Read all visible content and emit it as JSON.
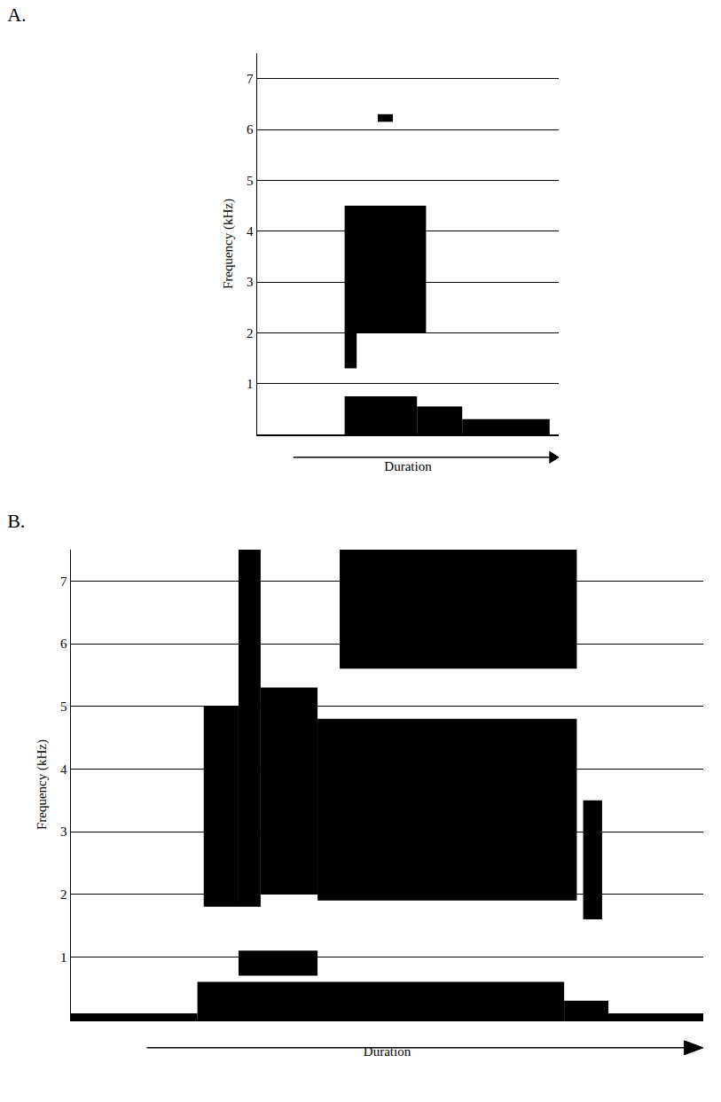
{
  "chart_data": [
    {
      "type": "spectrogram",
      "title": "A.",
      "xlabel": "Duration",
      "ylabel": "Frequency (kHz)",
      "xlim": [
        0,
        100
      ],
      "xticks": [],
      "ylim": [
        0,
        7.5
      ],
      "yticks": [
        1,
        2,
        3,
        4,
        5,
        6,
        7
      ],
      "grid": true,
      "tick_labels": "y",
      "color": "#000000",
      "bands": [
        {
          "x": [
            29,
            56
          ],
          "y": [
            2.0,
            4.5
          ]
        },
        {
          "x": [
            29,
            33
          ],
          "y": [
            1.3,
            2.0
          ]
        },
        {
          "x": [
            40,
            45
          ],
          "y": [
            6.15,
            6.3
          ]
        },
        {
          "x": [
            29,
            53
          ],
          "y": [
            0,
            0.75
          ]
        },
        {
          "x": [
            53,
            68
          ],
          "y": [
            0,
            0.55
          ]
        },
        {
          "x": [
            68,
            97
          ],
          "y": [
            0,
            0.3
          ]
        }
      ]
    },
    {
      "type": "spectrogram",
      "title": "B.",
      "xlabel": "Duration",
      "ylabel": "Frequency (kHz)",
      "xlim": [
        0,
        100
      ],
      "xticks": [],
      "ylim": [
        0,
        7.5
      ],
      "yticks": [
        1,
        2,
        3,
        4,
        5,
        6,
        7
      ],
      "grid": true,
      "tick_labels": "y",
      "color": "#000000",
      "bands": [
        {
          "x": [
            21,
            26.5
          ],
          "y": [
            1.8,
            5.0
          ]
        },
        {
          "x": [
            26.5,
            30
          ],
          "y": [
            1.8,
            7.5
          ]
        },
        {
          "x": [
            30,
            39
          ],
          "y": [
            2.0,
            5.3
          ]
        },
        {
          "x": [
            39,
            80
          ],
          "y": [
            1.9,
            4.8
          ]
        },
        {
          "x": [
            42.5,
            80
          ],
          "y": [
            5.6,
            7.5
          ]
        },
        {
          "x": [
            81,
            84
          ],
          "y": [
            1.6,
            3.5
          ]
        },
        {
          "x": [
            20,
            78
          ],
          "y": [
            0,
            0.6
          ]
        },
        {
          "x": [
            26.5,
            39
          ],
          "y": [
            0.7,
            1.1
          ]
        },
        {
          "x": [
            78,
            85
          ],
          "y": [
            0,
            0.3
          ]
        },
        {
          "x": [
            0,
            20
          ],
          "y": [
            0,
            0.1
          ]
        },
        {
          "x": [
            85,
            100
          ],
          "y": [
            0,
            0.1
          ]
        }
      ]
    }
  ]
}
